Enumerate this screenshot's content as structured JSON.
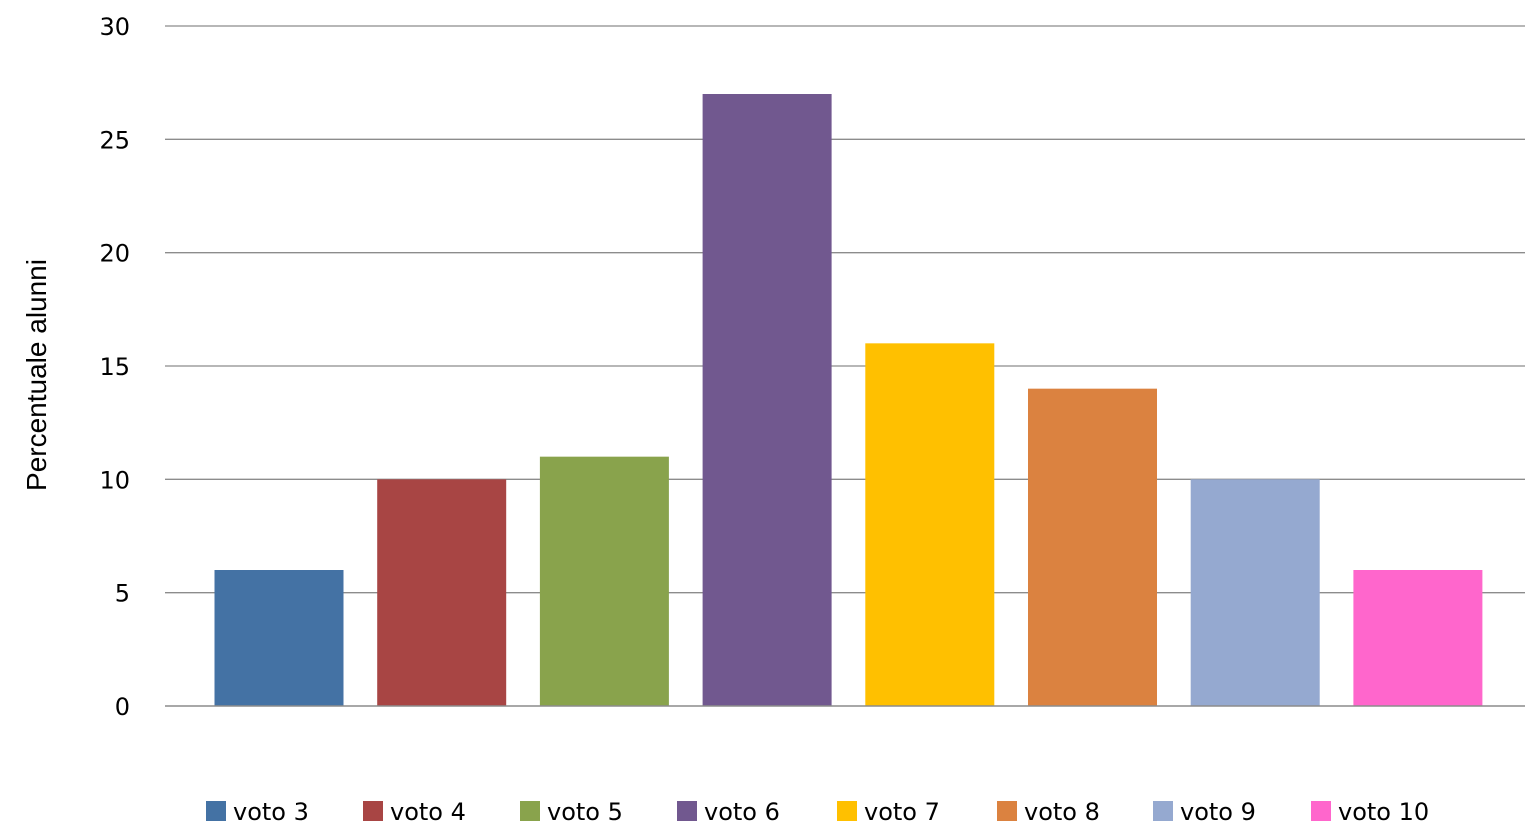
{
  "chart_data": {
    "type": "bar",
    "title": "",
    "xlabel": "",
    "ylabel": "Percentuale alunni",
    "ylim": [
      0,
      30
    ],
    "yticks": [
      0,
      5,
      10,
      15,
      20,
      25,
      30
    ],
    "grid": true,
    "legend_position": "bottom",
    "series": [
      {
        "name": "voto 3",
        "value": 6,
        "color": "#4472A4"
      },
      {
        "name": "voto 4",
        "value": 10,
        "color": "#A84544"
      },
      {
        "name": "voto 5",
        "value": 11,
        "color": "#89A34C"
      },
      {
        "name": "voto 6",
        "value": 27,
        "color": "#71588F"
      },
      {
        "name": "voto 7",
        "value": 16,
        "color": "#FFC000"
      },
      {
        "name": "voto 8",
        "value": 14,
        "color": "#DB8240"
      },
      {
        "name": "voto 9",
        "value": 10,
        "color": "#95A9D0"
      },
      {
        "name": "voto 10",
        "value": 6,
        "color": "#FF66CC"
      }
    ]
  }
}
